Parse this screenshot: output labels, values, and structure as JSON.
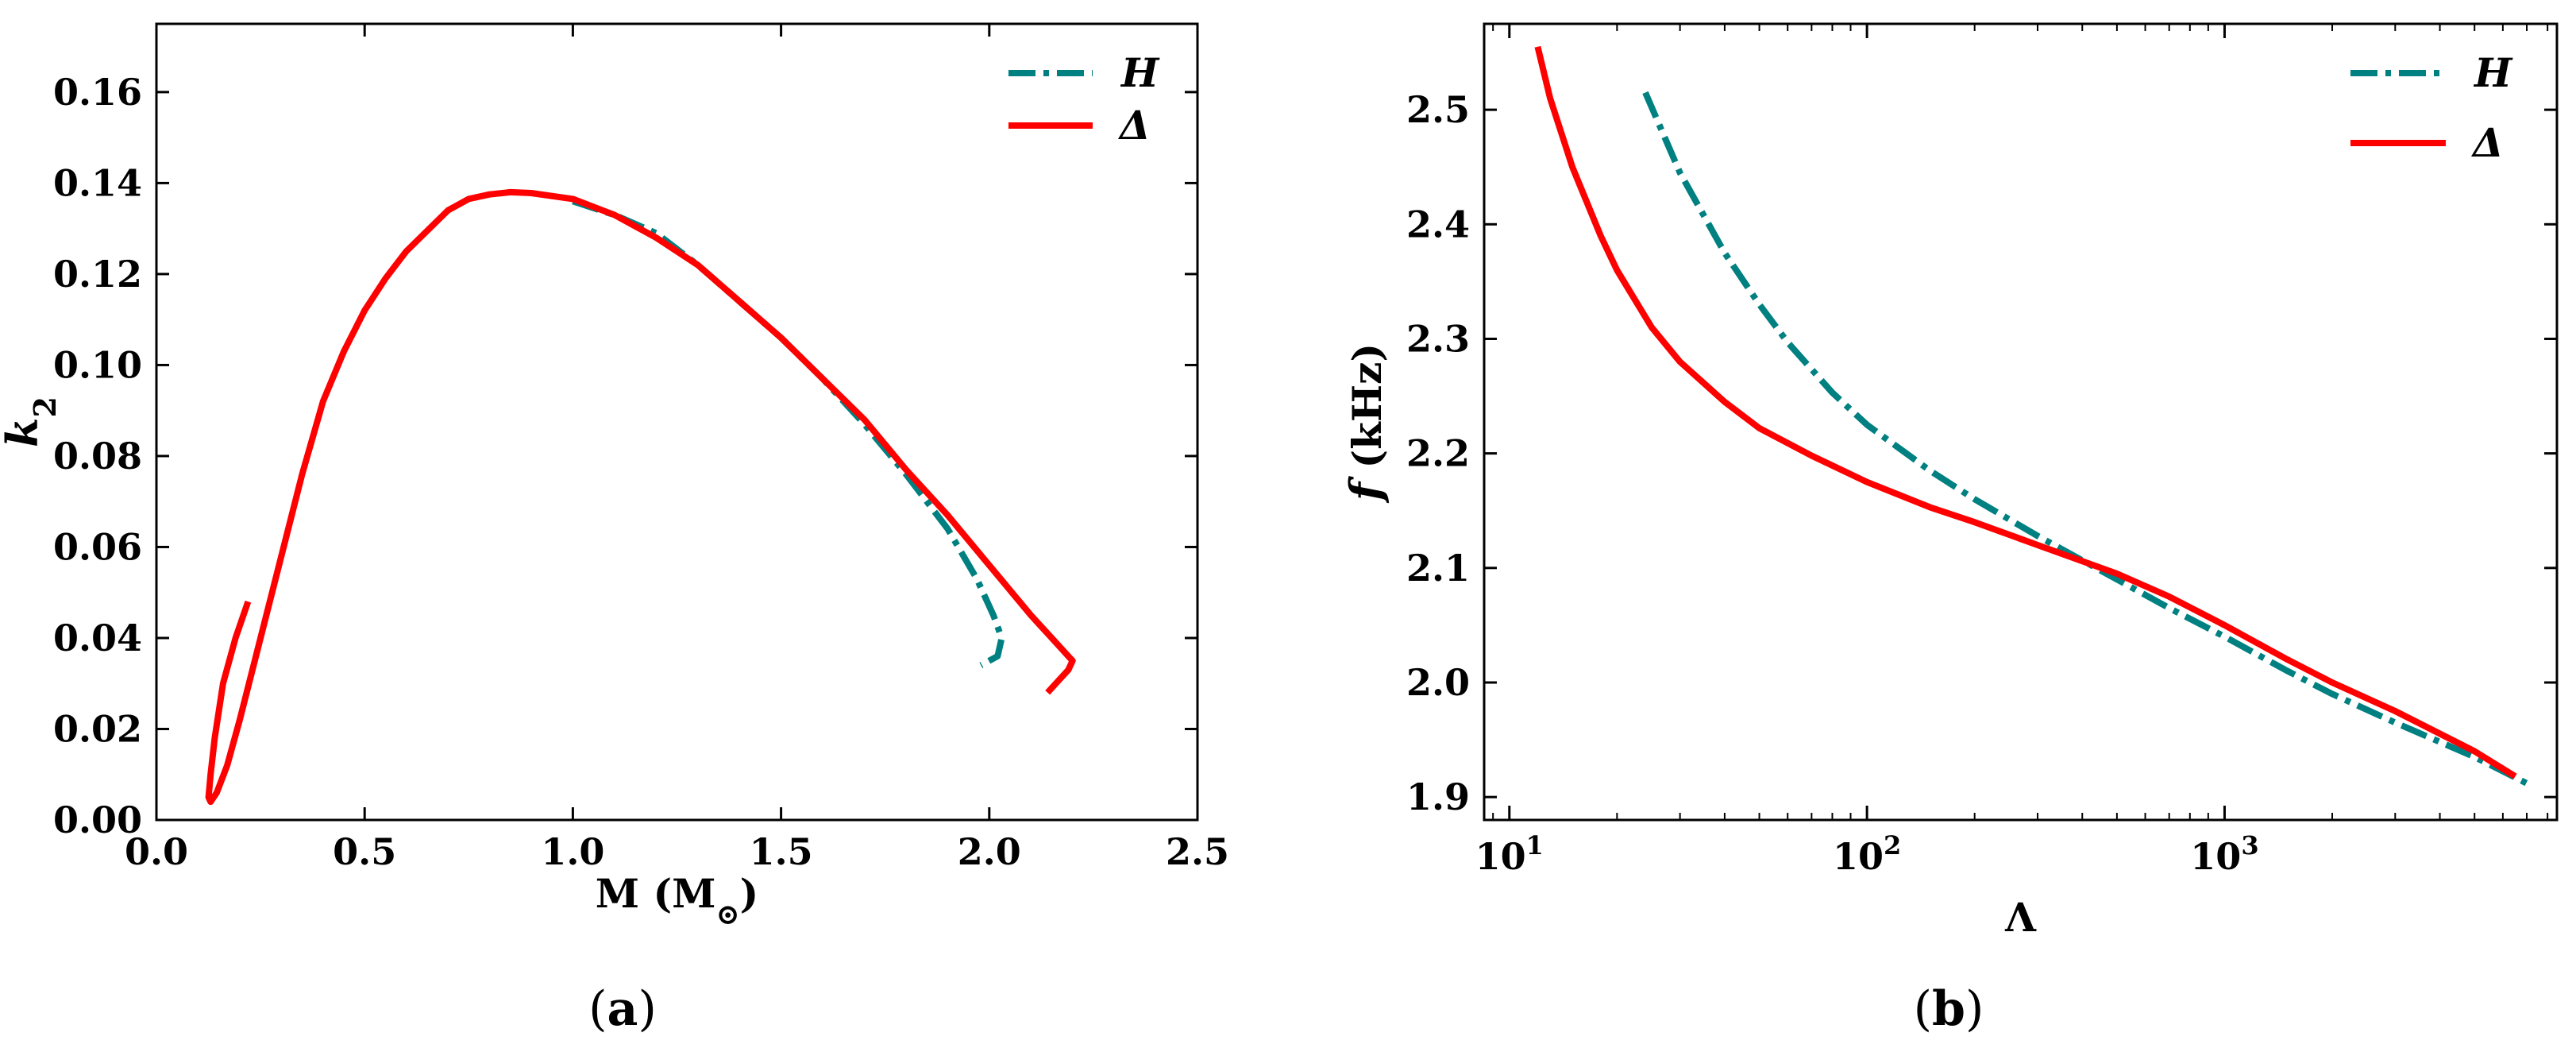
{
  "chart_data": [
    {
      "type": "line",
      "panel_label": "(a)",
      "panel_letter": "a",
      "xlabel": "M (M",
      "xlabel_sub": "⊙",
      "xlabel_close": ")",
      "ylabel_main": "k",
      "ylabel_sub": "2",
      "xlim": [
        0.0,
        2.5
      ],
      "ylim": [
        0.0,
        0.175
      ],
      "xticks": [
        "0.0",
        "0.5",
        "1.0",
        "1.5",
        "2.0",
        "2.5"
      ],
      "xtick_values": [
        0.0,
        0.5,
        1.0,
        1.5,
        2.0,
        2.5
      ],
      "yticks": [
        "0.00",
        "0.02",
        "0.04",
        "0.06",
        "0.08",
        "0.10",
        "0.12",
        "0.14",
        "0.16"
      ],
      "ytick_values": [
        0.0,
        0.02,
        0.04,
        0.06,
        0.08,
        0.1,
        0.12,
        0.14,
        0.16
      ],
      "legend_position": "top-right",
      "series": [
        {
          "name": "H",
          "style": "dashdot",
          "color": "#008080",
          "x": [
            1.0,
            1.1,
            1.2,
            1.3,
            1.4,
            1.5,
            1.6,
            1.7,
            1.8,
            1.9,
            1.97,
            2.01,
            2.03,
            2.02,
            1.98
          ],
          "y": [
            0.136,
            0.133,
            0.129,
            0.122,
            0.114,
            0.106,
            0.097,
            0.087,
            0.076,
            0.064,
            0.053,
            0.045,
            0.04,
            0.036,
            0.034
          ]
        },
        {
          "name": "Δ",
          "style": "solid",
          "color": "#ff0000",
          "x": [
            0.22,
            0.19,
            0.16,
            0.14,
            0.13,
            0.125,
            0.13,
            0.145,
            0.17,
            0.2,
            0.25,
            0.3,
            0.35,
            0.4,
            0.45,
            0.5,
            0.55,
            0.6,
            0.7,
            0.75,
            0.8,
            0.85,
            0.9,
            1.0,
            1.1,
            1.2,
            1.3,
            1.4,
            1.5,
            1.6,
            1.7,
            1.8,
            1.9,
            2.0,
            2.1,
            2.16,
            2.19,
            2.2,
            2.19,
            2.16,
            2.14
          ],
          "y": [
            0.048,
            0.04,
            0.03,
            0.018,
            0.01,
            0.005,
            0.004,
            0.006,
            0.012,
            0.022,
            0.04,
            0.058,
            0.076,
            0.092,
            0.103,
            0.112,
            0.119,
            0.125,
            0.134,
            0.1365,
            0.1375,
            0.138,
            0.1378,
            0.1365,
            0.133,
            0.128,
            0.122,
            0.114,
            0.106,
            0.097,
            0.088,
            0.077,
            0.067,
            0.056,
            0.045,
            0.039,
            0.036,
            0.035,
            0.033,
            0.03,
            0.028
          ]
        }
      ]
    },
    {
      "type": "line",
      "panel_label": "(b)",
      "panel_letter": "b",
      "xlabel": "Λ",
      "xscale": "log",
      "ylabel_main": "f",
      "ylabel_rest": " (kHz)",
      "xlim": [
        8.5,
        8500
      ],
      "ylim": [
        1.88,
        2.575
      ],
      "xticks": [
        {
          "base": "10",
          "exp": "1",
          "value": 10
        },
        {
          "base": "10",
          "exp": "2",
          "value": 100
        },
        {
          "base": "10",
          "exp": "3",
          "value": 1000
        }
      ],
      "yticks": [
        "1.9",
        "2.0",
        "2.1",
        "2.2",
        "2.3",
        "2.4",
        "2.5"
      ],
      "ytick_values": [
        1.9,
        2.0,
        2.1,
        2.2,
        2.3,
        2.4,
        2.5
      ],
      "legend_position": "top-right",
      "series": [
        {
          "name": "H",
          "style": "dashdot",
          "color": "#008080",
          "x": [
            24,
            30,
            40,
            50,
            60,
            80,
            100,
            150,
            200,
            300,
            500,
            700,
            1000,
            1500,
            2000,
            3000,
            5000,
            7000
          ],
          "y": [
            2.515,
            2.445,
            2.375,
            2.33,
            2.297,
            2.253,
            2.225,
            2.185,
            2.16,
            2.128,
            2.09,
            2.065,
            2.04,
            2.01,
            1.99,
            1.965,
            1.935,
            1.912
          ]
        },
        {
          "name": "Δ",
          "style": "solid",
          "color": "#ff0000",
          "x": [
            12,
            13,
            15,
            18,
            20,
            25,
            30,
            40,
            50,
            70,
            100,
            150,
            200,
            300,
            500,
            700,
            1000,
            1500,
            2000,
            3000,
            5000,
            6500
          ],
          "y": [
            2.555,
            2.51,
            2.45,
            2.39,
            2.36,
            2.31,
            2.28,
            2.245,
            2.222,
            2.198,
            2.175,
            2.153,
            2.14,
            2.12,
            2.095,
            2.075,
            2.05,
            2.02,
            2.0,
            1.975,
            1.94,
            1.918
          ]
        }
      ]
    }
  ]
}
